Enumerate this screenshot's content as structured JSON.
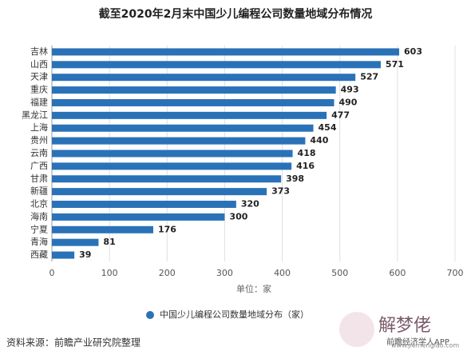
{
  "chart_data": {
    "type": "hbar",
    "title": "截至2020年2月末中国少儿编程公司数量地域分布情况",
    "categories": [
      "吉林",
      "山西",
      "天津",
      "重庆",
      "福建",
      "黑龙江",
      "上海",
      "贵州",
      "云南",
      "广西",
      "甘肃",
      "新疆",
      "北京",
      "海南",
      "宁夏",
      "青海",
      "西藏"
    ],
    "series": [
      {
        "name": "中国少儿编程公司数量地域分布（家）",
        "color": "#2a72b8",
        "values": [
          603,
          571,
          527,
          493,
          490,
          477,
          454,
          440,
          418,
          416,
          398,
          373,
          320,
          300,
          176,
          81,
          39
        ]
      }
    ],
    "xlim": [
      0,
      700
    ],
    "xticks": [
      0,
      100,
      200,
      300,
      400,
      500,
      600,
      700
    ],
    "grid": true,
    "x_label": "单位：家",
    "source": "资料来源：前瞻产业研究院整理",
    "watermark": [
      "解梦佬",
      "www.jiemenglao.com",
      "前瞻经济学人APP"
    ]
  }
}
